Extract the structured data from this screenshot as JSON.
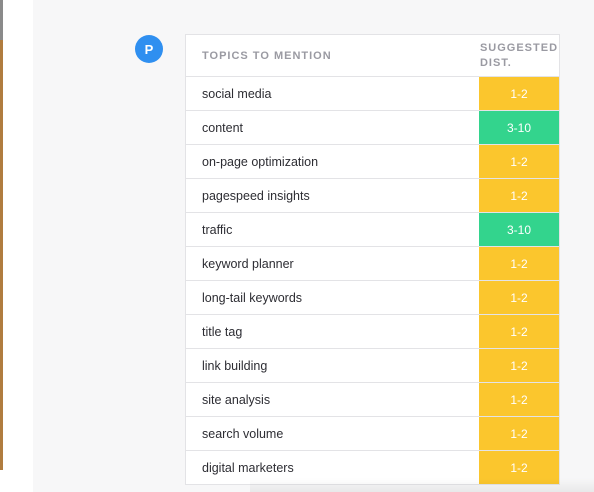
{
  "avatar": {
    "initial": "P"
  },
  "table": {
    "header_topic": "TOPICS TO MENTION",
    "header_dist_line1": "SUGGESTED",
    "header_dist_line2": "DIST.",
    "rows": [
      {
        "topic": "social media",
        "dist": "1-2",
        "level": "low"
      },
      {
        "topic": "content",
        "dist": "3-10",
        "level": "high"
      },
      {
        "topic": "on-page optimization",
        "dist": "1-2",
        "level": "low"
      },
      {
        "topic": "pagespeed insights",
        "dist": "1-2",
        "level": "low"
      },
      {
        "topic": "traffic",
        "dist": "3-10",
        "level": "high"
      },
      {
        "topic": "keyword planner",
        "dist": "1-2",
        "level": "low"
      },
      {
        "topic": "long-tail keywords",
        "dist": "1-2",
        "level": "low"
      },
      {
        "topic": "title tag",
        "dist": "1-2",
        "level": "low"
      },
      {
        "topic": "link building",
        "dist": "1-2",
        "level": "low"
      },
      {
        "topic": "site analysis",
        "dist": "1-2",
        "level": "low"
      },
      {
        "topic": "search volume",
        "dist": "1-2",
        "level": "low"
      },
      {
        "topic": "digital marketers",
        "dist": "1-2",
        "level": "low"
      }
    ]
  },
  "colors": {
    "low": "#fbc62d",
    "high": "#33d48d",
    "avatar": "#2f8ff0"
  }
}
